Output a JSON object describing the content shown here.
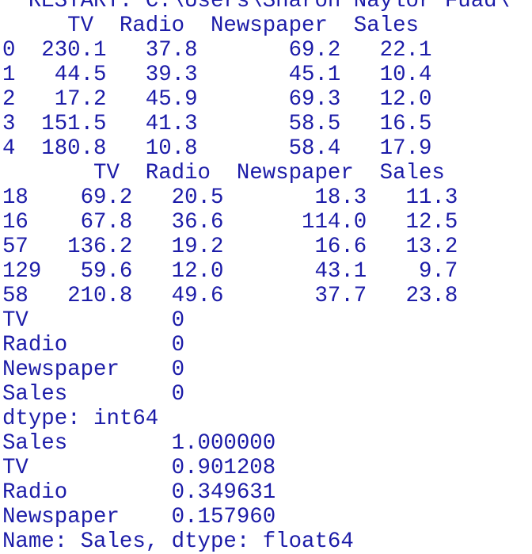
{
  "text_color": "#1c1ca8",
  "background_color": "#ffffff",
  "console": {
    "clipped_top_line": "  RESTART: C:\\Users\\Sharon Naylor Fuad\\",
    "lines": [
      "     TV  Radio  Newspaper  Sales",
      "0  230.1   37.8       69.2   22.1",
      "1   44.5   39.3       45.1   10.4",
      "2   17.2   45.9       69.3   12.0",
      "3  151.5   41.3       58.5   16.5",
      "4  180.8   10.8       58.4   17.9",
      "       TV  Radio  Newspaper  Sales",
      "18    69.2   20.5       18.3   11.3",
      "16    67.8   36.6      114.0   12.5",
      "57   136.2   19.2       16.6   13.2",
      "129   59.6   12.0       43.1    9.7",
      "58   210.8   49.6       37.7   23.8",
      "TV           0",
      "Radio        0",
      "Newspaper    0",
      "Sales        0",
      "dtype: int64",
      "Sales        1.000000",
      "TV           0.901208",
      "Radio        0.349631",
      "Newspaper    0.157960",
      "Name: Sales, dtype: float64"
    ]
  }
}
